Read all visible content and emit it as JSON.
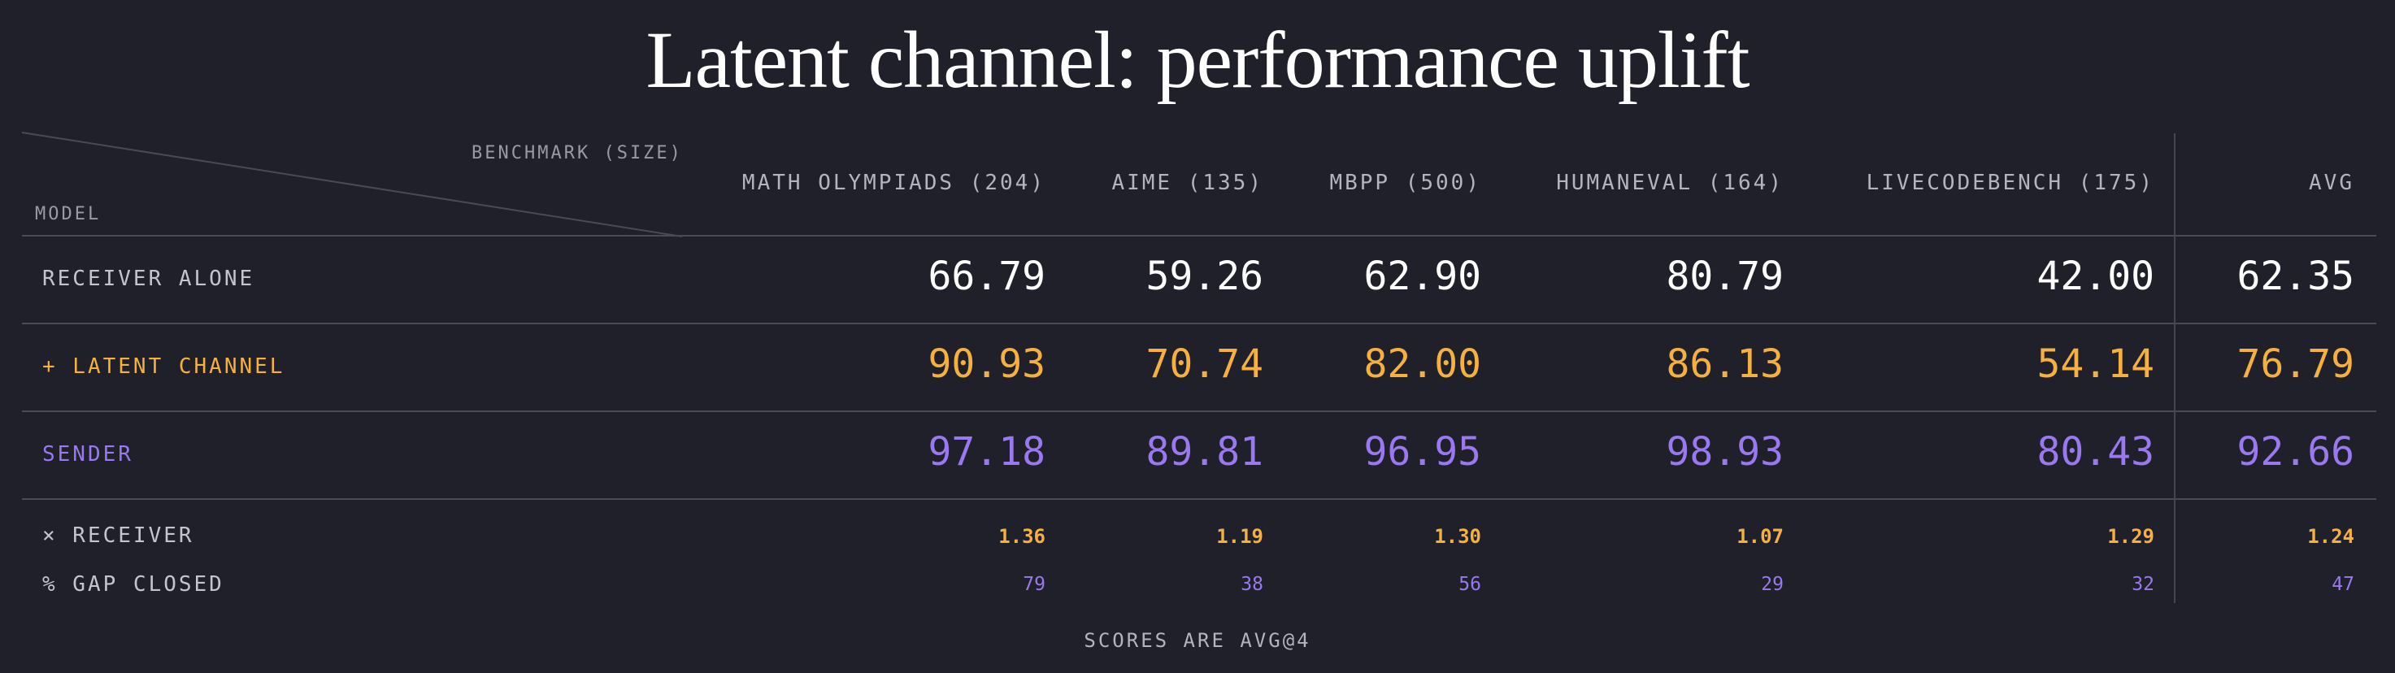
{
  "title": "Latent channel: performance uplift",
  "corner": {
    "benchmark_label": "BENCHMARK (SIZE)",
    "model_label": "MODEL"
  },
  "columns": [
    "MATH OLYMPIADS (204)",
    "AIME (135)",
    "MBPP (500)",
    "HUMANEVAL (164)",
    "LIVECODEBENCH (175)",
    "AVG"
  ],
  "rows": [
    {
      "label": "RECEIVER ALONE",
      "color": "#ffffff",
      "label_color": "#c4c4cc",
      "values": [
        "66.79",
        "59.26",
        "62.90",
        "80.79",
        "42.00",
        "62.35"
      ]
    },
    {
      "label": "+ LATENT CHANNEL",
      "color": "#f5b040",
      "label_color": "#f5b040",
      "values": [
        "90.93",
        "70.74",
        "82.00",
        "86.13",
        "54.14",
        "76.79"
      ]
    },
    {
      "label": "SENDER",
      "color": "#9a78f0",
      "label_color": "#9a78f0",
      "values": [
        "97.18",
        "89.81",
        "96.95",
        "98.93",
        "80.43",
        "92.66"
      ]
    }
  ],
  "summary_rows": [
    {
      "label": "× RECEIVER",
      "color": "#f5b040",
      "label_color": "#c4c4cc",
      "values": [
        "1.36",
        "1.19",
        "1.30",
        "1.07",
        "1.29",
        "1.24"
      ]
    },
    {
      "label": "% GAP CLOSED",
      "color": "#9a78f0",
      "label_color": "#c4c4cc",
      "values": [
        "79",
        "38",
        "56",
        "29",
        "32",
        "47"
      ]
    }
  ],
  "footnote": "SCORES ARE AVG@4"
}
